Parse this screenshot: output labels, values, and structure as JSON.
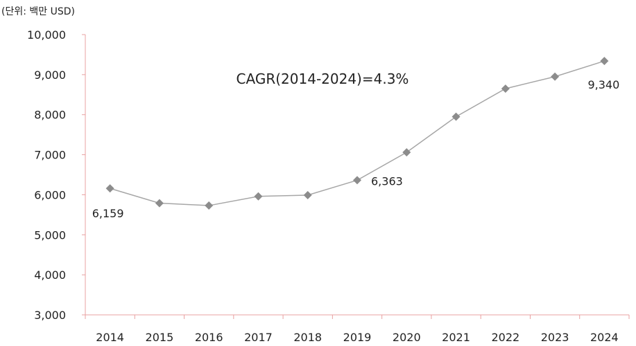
{
  "unit_label": "(단위: 백만 USD)",
  "annotation": "CAGR(2014-2024)=4.3%",
  "colors": {
    "axis": "#e8a0a0",
    "line": "#a6a6a6",
    "marker": "#8c8c8c",
    "text": "#222222"
  },
  "chart_data": {
    "type": "line",
    "title": "",
    "xlabel": "",
    "ylabel": "",
    "categories": [
      "2014",
      "2015",
      "2016",
      "2017",
      "2018",
      "2019",
      "2020",
      "2021",
      "2022",
      "2023",
      "2024"
    ],
    "series": [
      {
        "values": [
          6159,
          5790,
          5730,
          5960,
          5990,
          6363,
          7060,
          7950,
          8650,
          8950,
          9340
        ]
      }
    ],
    "ylim": [
      3000,
      10000
    ],
    "yticks": [
      3000,
      4000,
      5000,
      6000,
      7000,
      8000,
      9000,
      10000
    ],
    "ytick_labels": [
      "3,000",
      "4,000",
      "5,000",
      "6,000",
      "7,000",
      "8,000",
      "9,000",
      "10,000"
    ],
    "data_labels": [
      {
        "index": 0,
        "text": "6,159"
      },
      {
        "index": 5,
        "text": "6,363"
      },
      {
        "index": 10,
        "text": "9,340"
      }
    ],
    "marker": "diamond",
    "grid": false
  }
}
